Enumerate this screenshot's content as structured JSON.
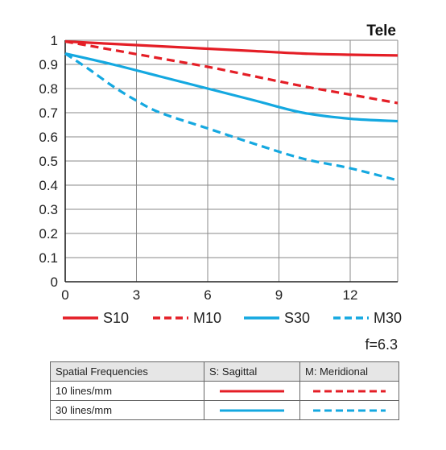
{
  "chart_data": {
    "type": "line",
    "title": "Tele",
    "xlim": [
      0,
      14
    ],
    "ylim": [
      0,
      1
    ],
    "xticks": [
      0,
      3,
      6,
      9,
      12
    ],
    "yticks": [
      0,
      0.1,
      0.2,
      0.3,
      0.4,
      0.5,
      0.6,
      0.7,
      0.8,
      0.9,
      1
    ],
    "yticklabels": [
      "0",
      "0.1",
      "0.2",
      "0.3",
      "0.4",
      "0.5",
      "0.6",
      "0.7",
      "0.8",
      "0.9",
      "1"
    ],
    "grid": true,
    "series": [
      {
        "name": "S10",
        "color": "#e41e26",
        "style": "solid",
        "x": [
          0,
          2,
          4,
          6,
          8,
          10,
          12,
          14
        ],
        "y": [
          0.995,
          0.985,
          0.975,
          0.965,
          0.955,
          0.945,
          0.94,
          0.937
        ]
      },
      {
        "name": "M10",
        "color": "#e41e26",
        "style": "dashed",
        "x": [
          0,
          2,
          4,
          6,
          8,
          10,
          12,
          14
        ],
        "y": [
          0.995,
          0.96,
          0.925,
          0.89,
          0.85,
          0.81,
          0.775,
          0.74
        ]
      },
      {
        "name": "S30",
        "color": "#14a8e0",
        "style": "solid",
        "x": [
          0,
          2,
          4,
          6,
          8,
          10,
          12,
          14
        ],
        "y": [
          0.945,
          0.9,
          0.85,
          0.8,
          0.75,
          0.7,
          0.675,
          0.665
        ]
      },
      {
        "name": "M30",
        "color": "#14a8e0",
        "style": "dashed",
        "x": [
          0,
          1,
          2,
          3,
          4,
          6,
          8,
          10,
          12,
          14
        ],
        "y": [
          0.945,
          0.88,
          0.81,
          0.75,
          0.7,
          0.635,
          0.57,
          0.51,
          0.47,
          0.42
        ]
      }
    ]
  },
  "legend": {
    "items": [
      {
        "label": "S10",
        "color": "#e41e26",
        "style": "solid"
      },
      {
        "label": "M10",
        "color": "#e41e26",
        "style": "dashed"
      },
      {
        "label": "S30",
        "color": "#14a8e0",
        "style": "solid"
      },
      {
        "label": "M30",
        "color": "#14a8e0",
        "style": "dashed"
      }
    ]
  },
  "aperture": "f=6.3",
  "table": {
    "headers": [
      "Spatial Frequencies",
      "S: Sagittal",
      "M: Meridional"
    ],
    "rows": [
      {
        "label": "10 lines/mm",
        "color": "#e41e26"
      },
      {
        "label": "30 lines/mm",
        "color": "#14a8e0"
      }
    ]
  }
}
